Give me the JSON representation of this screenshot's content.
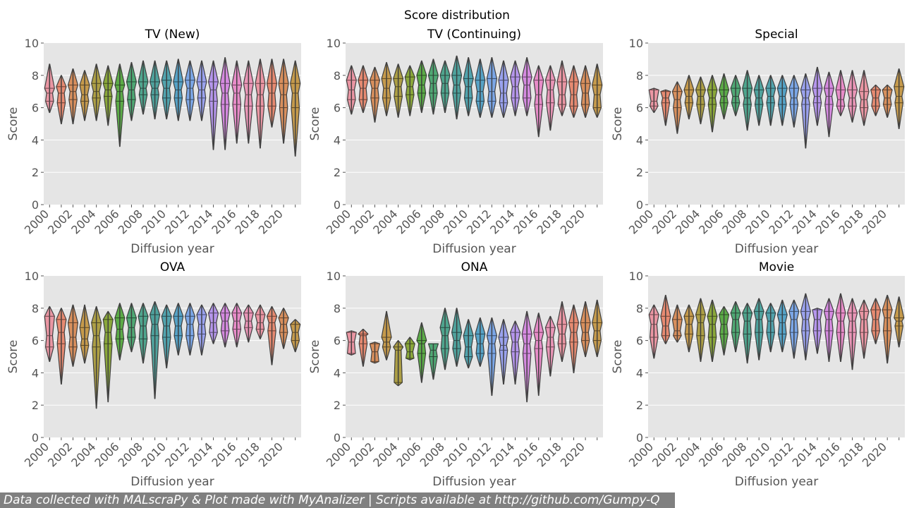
{
  "figure": {
    "title": "Score distribution",
    "footer": "Data collected with MALscraPy & Plot made with MyAnalizer | Scripts available at http://github.com/Gumpy-Q"
  },
  "palette": [
    "#EA96A3",
    "#E68A71",
    "#D88F5D",
    "#C59A4C",
    "#AD9F45",
    "#8AA73A",
    "#5BAB47",
    "#4FA874",
    "#4FA58E",
    "#4FA29D",
    "#51A3AD",
    "#56A2C6",
    "#7BA6E6",
    "#9AA2EE",
    "#B596EC",
    "#D48ADF",
    "#E78CC8",
    "#EA96B7"
  ],
  "chart_data": [
    {
      "type": "violin",
      "title": "TV (New)",
      "xlabel": "Diffusion year",
      "ylabel": "Score",
      "ylim": [
        0,
        10
      ],
      "yticks": [
        0,
        2,
        4,
        6,
        8,
        10
      ],
      "categories": [
        "2000",
        "2001",
        "2002",
        "2003",
        "2004",
        "2005",
        "2006",
        "2007",
        "2008",
        "2009",
        "2010",
        "2011",
        "2012",
        "2013",
        "2014",
        "2015",
        "2016",
        "2017",
        "2018",
        "2019",
        "2020",
        "2021"
      ],
      "xtick_labels": [
        "2000",
        "2002",
        "2004",
        "2006",
        "2008",
        "2010",
        "2012",
        "2014",
        "2016",
        "2018",
        "2020"
      ],
      "min": [
        5.7,
        5.0,
        5.0,
        5.2,
        5.2,
        4.9,
        3.6,
        5.2,
        5.6,
        5.3,
        5.3,
        5.2,
        5.2,
        5.2,
        3.4,
        3.4,
        3.8,
        3.8,
        3.5,
        4.8,
        3.8,
        3.0
      ],
      "q1": [
        6.4,
        6.3,
        6.5,
        6.4,
        6.6,
        6.7,
        6.4,
        6.5,
        6.8,
        6.8,
        6.6,
        6.6,
        6.5,
        6.6,
        6.4,
        6.2,
        6.2,
        6.1,
        6.1,
        6.1,
        6.0,
        6.0
      ],
      "median": [
        6.9,
        6.9,
        7.0,
        6.8,
        7.0,
        7.1,
        7.0,
        7.1,
        7.2,
        7.2,
        7.2,
        7.1,
        7.2,
        7.1,
        7.1,
        6.9,
        6.9,
        6.8,
        6.8,
        6.9,
        6.8,
        6.9
      ],
      "q3": [
        7.2,
        7.3,
        7.4,
        7.4,
        7.5,
        7.5,
        7.4,
        7.6,
        7.6,
        7.6,
        7.7,
        7.6,
        7.7,
        7.6,
        7.6,
        7.5,
        7.4,
        7.5,
        7.5,
        7.5,
        7.5,
        7.5
      ],
      "max": [
        8.7,
        8.0,
        8.4,
        8.3,
        8.7,
        8.6,
        8.7,
        8.8,
        8.9,
        8.9,
        8.9,
        9.0,
        8.9,
        8.9,
        8.9,
        9.1,
        8.9,
        8.9,
        9.0,
        9.0,
        9.0,
        8.9
      ]
    },
    {
      "type": "violin",
      "title": "TV (Continuing)",
      "xlabel": "Diffusion year",
      "ylabel": "Score",
      "ylim": [
        0,
        10
      ],
      "yticks": [
        0,
        2,
        4,
        6,
        8,
        10
      ],
      "categories": [
        "2000",
        "2001",
        "2002",
        "2003",
        "2004",
        "2005",
        "2006",
        "2007",
        "2008",
        "2009",
        "2010",
        "2011",
        "2012",
        "2013",
        "2014",
        "2015",
        "2016",
        "2017",
        "2018",
        "2019",
        "2020",
        "2021"
      ],
      "xtick_labels": [
        "2000",
        "2002",
        "2004",
        "2006",
        "2008",
        "2010",
        "2012",
        "2014",
        "2016",
        "2018",
        "2020"
      ],
      "min": [
        5.6,
        5.7,
        5.1,
        5.5,
        5.4,
        5.5,
        5.7,
        5.6,
        5.7,
        5.3,
        5.5,
        5.4,
        5.4,
        5.4,
        5.5,
        5.5,
        4.2,
        4.6,
        5.5,
        5.4,
        5.4,
        5.4
      ],
      "q1": [
        6.5,
        6.5,
        6.6,
        6.6,
        6.7,
        6.8,
        6.9,
        6.9,
        6.9,
        6.9,
        6.6,
        6.4,
        6.4,
        6.3,
        6.6,
        6.6,
        6.2,
        6.3,
        6.2,
        6.1,
        6.2,
        6.0
      ],
      "median": [
        7.1,
        7.2,
        7.2,
        7.2,
        7.3,
        7.3,
        7.4,
        7.5,
        7.5,
        7.4,
        7.3,
        7.0,
        7.0,
        6.9,
        7.3,
        7.4,
        6.8,
        7.1,
        6.8,
        6.8,
        6.9,
        6.8
      ],
      "q3": [
        7.7,
        7.7,
        7.7,
        7.8,
        7.8,
        7.9,
        8.0,
        8.0,
        8.0,
        8.0,
        7.8,
        7.7,
        7.8,
        7.7,
        7.9,
        7.9,
        7.7,
        7.7,
        7.6,
        7.6,
        7.5,
        7.4
      ],
      "max": [
        8.6,
        8.6,
        8.5,
        8.8,
        8.7,
        8.6,
        8.9,
        9.0,
        8.9,
        9.2,
        9.1,
        9.0,
        9.1,
        8.9,
        8.9,
        9.1,
        8.6,
        8.6,
        8.9,
        8.6,
        8.6,
        8.7
      ]
    },
    {
      "type": "violin",
      "title": "Special",
      "xlabel": "Diffusion year",
      "ylabel": "Score",
      "ylim": [
        0,
        10
      ],
      "yticks": [
        0,
        2,
        4,
        6,
        8,
        10
      ],
      "categories": [
        "2000",
        "2001",
        "2002",
        "2003",
        "2004",
        "2005",
        "2006",
        "2007",
        "2008",
        "2009",
        "2010",
        "2011",
        "2012",
        "2013",
        "2014",
        "2015",
        "2016",
        "2017",
        "2018",
        "2019",
        "2020",
        "2021"
      ],
      "xtick_labels": [
        "2000",
        "2002",
        "2004",
        "2006",
        "2008",
        "2010",
        "2012",
        "2014",
        "2016",
        "2018",
        "2020"
      ],
      "min": [
        5.7,
        4.9,
        4.4,
        5.3,
        5.0,
        4.5,
        5.3,
        5.5,
        4.6,
        4.9,
        4.9,
        4.9,
        4.8,
        3.5,
        4.9,
        4.2,
        5.5,
        5.1,
        4.9,
        5.5,
        5.4,
        4.7
      ],
      "q1": [
        6.1,
        6.3,
        6.0,
        6.3,
        6.2,
        6.2,
        6.3,
        6.3,
        6.2,
        6.2,
        6.3,
        6.2,
        6.2,
        6.2,
        6.3,
        6.2,
        6.1,
        6.1,
        6.0,
        6.1,
        6.2,
        6.3
      ],
      "median": [
        6.4,
        6.6,
        6.5,
        6.7,
        6.7,
        6.6,
        6.7,
        6.7,
        6.6,
        6.6,
        6.7,
        6.7,
        6.6,
        6.6,
        6.7,
        6.7,
        6.5,
        6.6,
        6.5,
        6.6,
        6.6,
        6.7
      ],
      "q3": [
        7.1,
        7.0,
        7.0,
        7.1,
        7.1,
        7.1,
        7.1,
        7.2,
        7.2,
        7.1,
        7.2,
        7.2,
        7.2,
        7.1,
        7.2,
        7.2,
        7.1,
        7.1,
        7.0,
        7.1,
        7.1,
        7.3
      ],
      "max": [
        7.2,
        7.1,
        7.6,
        8.0,
        7.9,
        8.0,
        8.1,
        8.0,
        8.3,
        8.0,
        8.0,
        8.0,
        8.0,
        8.1,
        8.5,
        8.2,
        8.3,
        8.3,
        8.3,
        7.4,
        7.4,
        8.4
      ]
    },
    {
      "type": "violin",
      "title": "OVA",
      "xlabel": "Diffusion year",
      "ylabel": "Score",
      "ylim": [
        0,
        10
      ],
      "yticks": [
        0,
        2,
        4,
        6,
        8,
        10
      ],
      "categories": [
        "2000",
        "2001",
        "2002",
        "2003",
        "2004",
        "2005",
        "2006",
        "2007",
        "2008",
        "2009",
        "2010",
        "2011",
        "2012",
        "2013",
        "2014",
        "2015",
        "2016",
        "2017",
        "2018",
        "2019",
        "2020",
        "2021"
      ],
      "xtick_labels": [
        "2000",
        "2002",
        "2004",
        "2006",
        "2008",
        "2010",
        "2012",
        "2014",
        "2016",
        "2018",
        "2020"
      ],
      "min": [
        4.7,
        3.3,
        4.4,
        4.6,
        1.8,
        2.2,
        4.8,
        5.3,
        4.6,
        2.4,
        4.3,
        5.1,
        5.1,
        5.1,
        5.8,
        5.6,
        5.6,
        5.9,
        6.1,
        4.5,
        5.5,
        5.3
      ],
      "q1": [
        5.6,
        5.8,
        5.6,
        5.7,
        5.6,
        5.8,
        6.1,
        6.2,
        6.1,
        6.3,
        6.2,
        6.3,
        6.3,
        6.4,
        6.5,
        6.6,
        6.7,
        6.8,
        6.7,
        6.6,
        6.5,
        6.0
      ],
      "median": [
        6.3,
        6.5,
        6.2,
        6.1,
        6.3,
        6.5,
        6.7,
        6.8,
        6.9,
        7.0,
        6.9,
        6.9,
        7.0,
        7.0,
        7.1,
        7.2,
        7.2,
        7.2,
        7.1,
        7.1,
        7.0,
        6.5
      ],
      "q3": [
        7.5,
        7.3,
        7.1,
        6.8,
        7.1,
        7.3,
        7.4,
        7.4,
        7.5,
        7.6,
        7.5,
        7.5,
        7.5,
        7.6,
        7.7,
        7.7,
        7.7,
        7.7,
        7.6,
        7.5,
        7.4,
        7.0
      ],
      "max": [
        8.1,
        8.0,
        8.2,
        8.2,
        8.1,
        7.8,
        8.3,
        8.3,
        8.3,
        8.4,
        8.2,
        8.3,
        8.3,
        8.2,
        8.3,
        8.3,
        8.3,
        8.2,
        8.2,
        8.1,
        8.0,
        7.3
      ]
    },
    {
      "type": "violin",
      "title": "ONA",
      "xlabel": "Diffusion year",
      "ylabel": "Score",
      "ylim": [
        0,
        10
      ],
      "yticks": [
        0,
        2,
        4,
        6,
        8,
        10
      ],
      "categories": [
        "2000",
        "2001",
        "2002",
        "2003",
        "2004",
        "2005",
        "2006",
        "2007",
        "2008",
        "2009",
        "2010",
        "2011",
        "2012",
        "2013",
        "2014",
        "2015",
        "2016",
        "2017",
        "2018",
        "2019",
        "2020",
        "2021"
      ],
      "xtick_labels": [
        "2000",
        "2002",
        "2004",
        "2006",
        "2008",
        "2010",
        "2012",
        "2014",
        "2016",
        "2018",
        "2020"
      ],
      "min": [
        5.1,
        4.4,
        4.6,
        4.8,
        3.2,
        4.8,
        3.4,
        3.6,
        4.2,
        4.4,
        4.3,
        4.4,
        2.6,
        3.3,
        3.3,
        2.2,
        2.6,
        3.8,
        4.7,
        4.0,
        5.0,
        5.0
      ],
      "q1": [
        5.2,
        5.8,
        4.7,
        5.6,
        3.4,
        4.9,
        5.2,
        5.0,
        5.5,
        5.5,
        5.0,
        5.2,
        5.2,
        5.4,
        5.3,
        5.2,
        5.5,
        5.6,
        5.8,
        5.9,
        6.0,
        6.0
      ],
      "median": [
        5.9,
        6.3,
        5.3,
        5.9,
        5.4,
        5.3,
        5.8,
        5.4,
        6.3,
        6.0,
        5.6,
        5.8,
        5.8,
        5.7,
        5.9,
        5.8,
        6.0,
        6.2,
        6.4,
        6.5,
        6.5,
        6.6
      ],
      "q3": [
        6.5,
        6.4,
        5.8,
        6.2,
        5.6,
        5.8,
        6.0,
        5.8,
        6.8,
        6.5,
        6.3,
        6.4,
        6.3,
        6.2,
        6.5,
        6.4,
        6.5,
        6.8,
        7.0,
        7.1,
        7.1,
        7.1
      ],
      "max": [
        6.6,
        6.7,
        5.9,
        7.8,
        6.0,
        6.2,
        7.1,
        5.8,
        8.0,
        8.0,
        7.3,
        7.4,
        7.4,
        7.3,
        7.2,
        7.8,
        7.7,
        7.5,
        8.4,
        8.2,
        8.4,
        8.5
      ]
    },
    {
      "type": "violin",
      "title": "Movie",
      "xlabel": "Diffusion year",
      "ylabel": "Score",
      "ylim": [
        0,
        10
      ],
      "yticks": [
        0,
        2,
        4,
        6,
        8,
        10
      ],
      "categories": [
        "2000",
        "2001",
        "2002",
        "2003",
        "2004",
        "2005",
        "2006",
        "2007",
        "2008",
        "2009",
        "2010",
        "2011",
        "2012",
        "2013",
        "2014",
        "2015",
        "2016",
        "2017",
        "2018",
        "2019",
        "2020",
        "2021"
      ],
      "xtick_labels": [
        "2000",
        "2002",
        "2004",
        "2006",
        "2008",
        "2010",
        "2012",
        "2014",
        "2016",
        "2018",
        "2020"
      ],
      "min": [
        4.9,
        5.8,
        5.9,
        5.3,
        4.7,
        4.7,
        5.1,
        5.3,
        4.6,
        4.8,
        5.3,
        5.3,
        4.9,
        4.8,
        5.2,
        4.7,
        4.7,
        4.2,
        4.9,
        5.8,
        4.6,
        5.6
      ],
      "q1": [
        6.2,
        6.3,
        6.3,
        6.4,
        6.3,
        6.2,
        6.4,
        6.5,
        6.4,
        6.5,
        6.5,
        6.4,
        6.5,
        6.6,
        6.6,
        6.6,
        6.5,
        6.5,
        6.5,
        6.6,
        6.6,
        6.9
      ],
      "median": [
        7.0,
        6.9,
        6.6,
        7.0,
        7.1,
        7.0,
        7.0,
        7.3,
        7.2,
        7.3,
        7.2,
        7.1,
        7.3,
        7.3,
        7.3,
        7.3,
        7.2,
        7.2,
        7.3,
        7.3,
        7.4,
        7.2
      ],
      "q3": [
        7.6,
        7.5,
        7.3,
        7.5,
        7.6,
        7.5,
        7.6,
        7.7,
        7.7,
        7.8,
        7.7,
        7.6,
        7.8,
        7.8,
        7.9,
        7.8,
        7.7,
        7.7,
        7.8,
        7.9,
        7.9,
        7.4
      ],
      "max": [
        8.2,
        8.8,
        8.2,
        8.2,
        8.6,
        8.5,
        8.1,
        8.4,
        8.3,
        8.6,
        8.3,
        8.5,
        8.5,
        8.9,
        8.0,
        8.6,
        8.9,
        8.6,
        8.5,
        8.6,
        8.8,
        8.7
      ]
    }
  ]
}
